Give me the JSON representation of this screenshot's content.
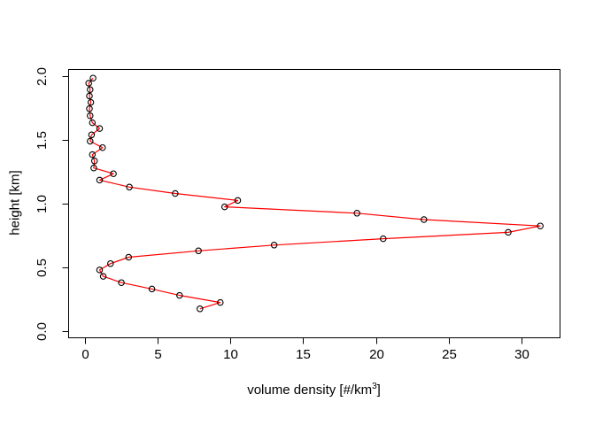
{
  "figure": {
    "background": "#ffffff",
    "xlabel_pre": "volume density [#/km",
    "xlabel_sup": "3",
    "xlabel_post": "]",
    "ylabel": "height [km]"
  },
  "chart_data": {
    "type": "line",
    "title": "",
    "xlabel": "volume density [#/km^3]",
    "ylabel": "height [km]",
    "x_tick_labels": [
      "0",
      "5",
      "10",
      "15",
      "20",
      "25",
      "30"
    ],
    "y_tick_labels": [
      "0.0",
      "0.5",
      "1.0",
      "1.5",
      "2.0"
    ],
    "xlim": [
      -1.16,
      32.63
    ],
    "ylim": [
      -0.049,
      2.056
    ],
    "grid": false,
    "legend": false,
    "line_color": "#ff0000",
    "marker": "open-circle",
    "marker_color": "#000000",
    "box_color": "#000000",
    "points": [
      [
        7.9,
        0.175
      ],
      [
        9.3,
        0.225
      ],
      [
        6.5,
        0.28
      ],
      [
        4.6,
        0.33
      ],
      [
        2.5,
        0.38
      ],
      [
        1.25,
        0.43
      ],
      [
        1.0,
        0.48
      ],
      [
        1.75,
        0.53
      ],
      [
        3.0,
        0.58
      ],
      [
        7.8,
        0.63
      ],
      [
        13.0,
        0.675
      ],
      [
        20.5,
        0.725
      ],
      [
        29.1,
        0.775
      ],
      [
        31.3,
        0.825
      ],
      [
        23.3,
        0.875
      ],
      [
        18.7,
        0.925
      ],
      [
        9.6,
        0.975
      ],
      [
        10.5,
        1.025
      ],
      [
        6.2,
        1.08
      ],
      [
        3.05,
        1.13
      ],
      [
        1.0,
        1.185
      ],
      [
        1.95,
        1.235
      ],
      [
        0.6,
        1.28
      ],
      [
        0.65,
        1.335
      ],
      [
        0.5,
        1.385
      ],
      [
        1.2,
        1.44
      ],
      [
        0.35,
        1.49
      ],
      [
        0.45,
        1.54
      ],
      [
        1.0,
        1.59
      ],
      [
        0.5,
        1.635
      ],
      [
        0.35,
        1.69
      ],
      [
        0.3,
        1.745
      ],
      [
        0.4,
        1.795
      ],
      [
        0.3,
        1.845
      ],
      [
        0.35,
        1.895
      ],
      [
        0.25,
        1.945
      ],
      [
        0.55,
        1.985
      ]
    ]
  }
}
